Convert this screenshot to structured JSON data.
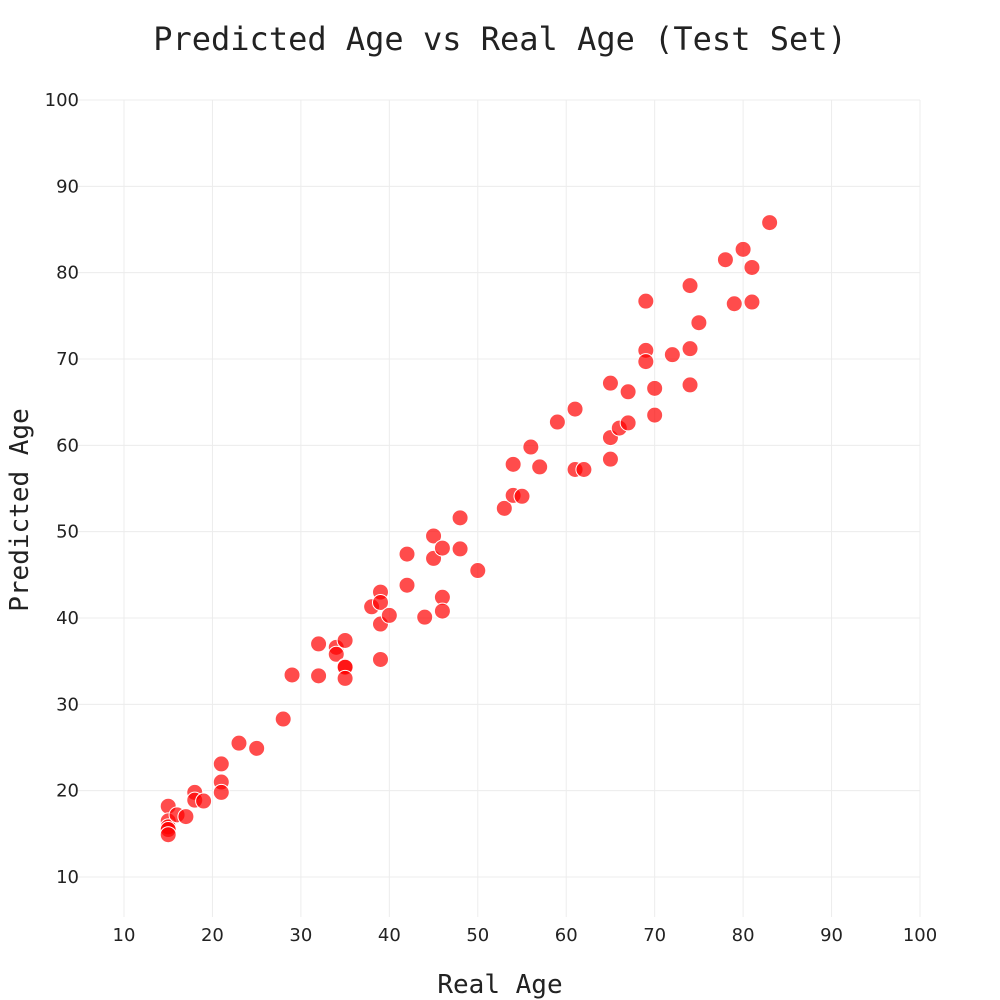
{
  "chart_data": {
    "type": "scatter",
    "title": "Predicted Age vs Real Age (Test Set)",
    "xlabel": "Real Age",
    "ylabel": "Predicted Age",
    "xlim": [
      10,
      100
    ],
    "ylim": [
      10,
      100
    ],
    "xticks": [
      10,
      20,
      30,
      40,
      50,
      60,
      70,
      80,
      90,
      100
    ],
    "yticks": [
      10,
      20,
      30,
      40,
      50,
      60,
      70,
      80,
      90,
      100
    ],
    "grid": true,
    "marker_color": "#ff0000",
    "marker_opacity": 0.7,
    "series": [
      {
        "x": [
          15,
          15,
          15,
          15,
          15,
          16,
          17,
          18,
          18,
          19,
          21,
          21,
          21,
          23,
          25,
          28,
          29,
          32,
          32,
          34,
          34,
          35,
          35,
          35,
          35,
          38,
          39,
          39,
          39,
          39,
          40,
          42,
          42,
          44,
          45,
          45,
          46,
          46,
          46,
          48,
          48,
          50,
          53,
          54,
          54,
          55,
          56,
          57,
          59,
          61,
          61,
          62,
          65,
          65,
          65,
          66,
          67,
          67,
          69,
          69,
          69,
          70,
          70,
          72,
          74,
          74,
          74,
          75,
          78,
          79,
          80,
          81,
          81,
          83
        ],
        "y": [
          18.2,
          16.5,
          15.8,
          15.5,
          14.9,
          17.2,
          17.0,
          19.8,
          18.9,
          18.8,
          23.1,
          21.0,
          19.8,
          25.5,
          24.9,
          28.3,
          33.4,
          37.0,
          33.3,
          36.6,
          35.8,
          37.4,
          34.4,
          34.3,
          33.0,
          41.3,
          43.0,
          41.8,
          39.3,
          35.2,
          40.3,
          47.4,
          43.8,
          40.1,
          49.5,
          46.9,
          48.1,
          42.4,
          40.8,
          51.6,
          48.0,
          45.5,
          52.7,
          57.8,
          54.2,
          54.1,
          59.8,
          57.5,
          62.7,
          64.2,
          57.2,
          57.2,
          67.2,
          60.9,
          58.4,
          62.0,
          66.2,
          62.6,
          76.7,
          71.0,
          69.7,
          66.6,
          63.5,
          70.5,
          78.5,
          71.2,
          67.0,
          74.2,
          81.5,
          76.4,
          82.7,
          80.6,
          76.6,
          85.8
        ]
      }
    ]
  }
}
